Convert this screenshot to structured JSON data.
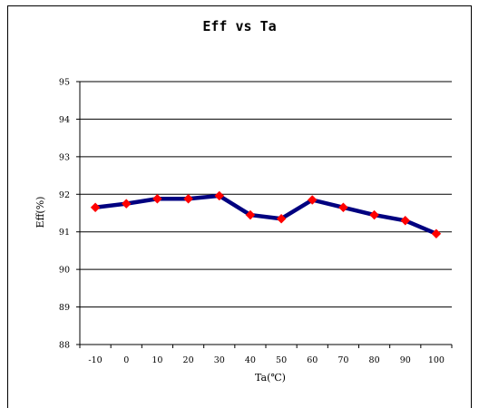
{
  "chart_data": {
    "type": "line",
    "title": "Eff vs Ta",
    "xlabel": "Ta(℃)",
    "ylabel": "Eff(%)",
    "categories": [
      "-10",
      "0",
      "10",
      "20",
      "30",
      "40",
      "50",
      "60",
      "70",
      "80",
      "90",
      "100"
    ],
    "yticks": [
      "88",
      "89",
      "90",
      "91",
      "92",
      "93",
      "94",
      "95"
    ],
    "ylim": [
      88,
      95
    ],
    "grid": true,
    "series": [
      {
        "values": [
          91.65,
          91.75,
          91.88,
          91.88,
          91.96,
          91.45,
          91.35,
          91.85,
          91.65,
          91.45,
          91.3,
          90.95
        ],
        "line_color": "#000080",
        "marker_color": "#ff0000"
      }
    ]
  }
}
